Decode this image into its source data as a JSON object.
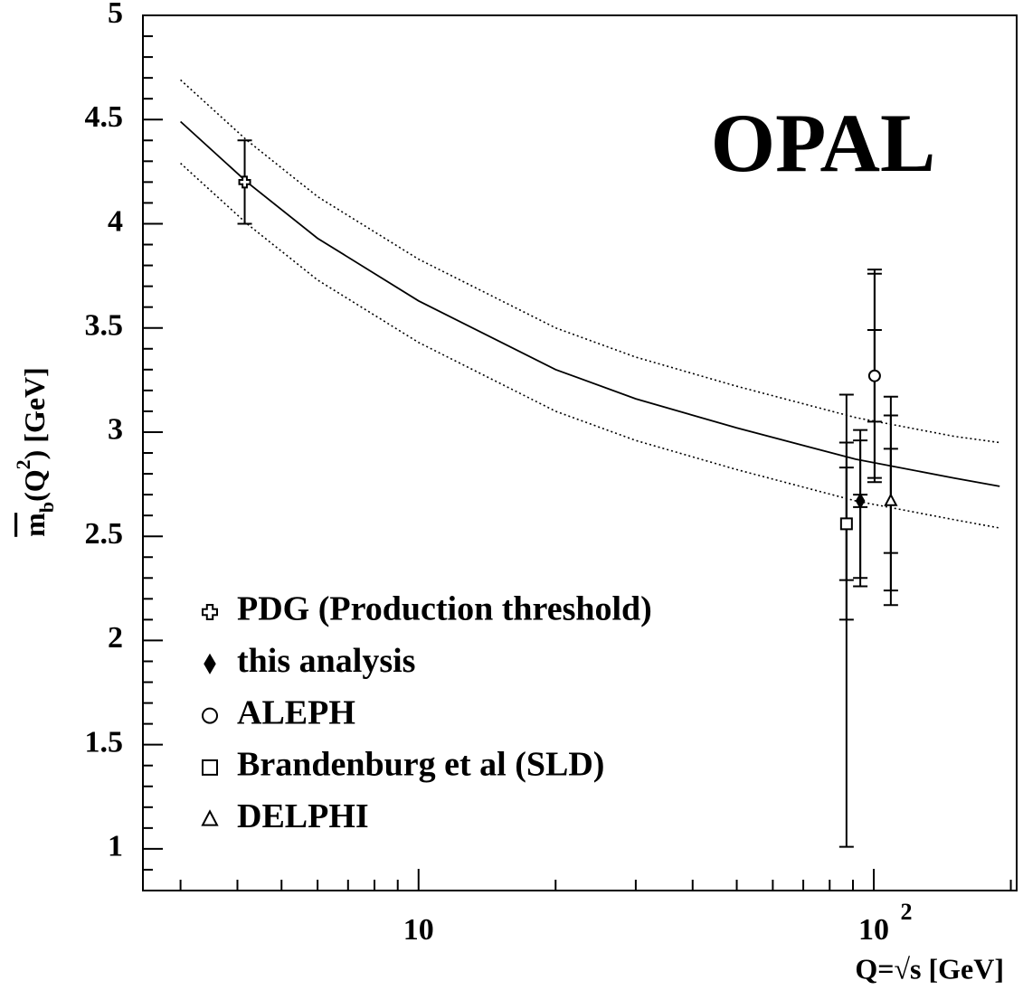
{
  "chart_data": {
    "type": "scatter",
    "title": "OPAL",
    "xlabel": "Q=√s [GeV]",
    "ylabel_parts": [
      "m",
      "b",
      "(Q",
      "2",
      ") [GeV]"
    ],
    "xscale": "log",
    "xlim": [
      2.48,
      206
    ],
    "ylim": [
      0.8,
      5
    ],
    "xticks": [
      10,
      {
        "value": 100,
        "label": "10"
      }
    ],
    "xtick_exponents": [
      null,
      "2"
    ],
    "xminorticks": [
      3,
      4,
      5,
      6,
      7,
      8,
      9,
      20,
      30,
      40,
      50,
      60,
      70,
      80,
      90,
      200
    ],
    "yticks": [
      1,
      1.5,
      2,
      2.5,
      3,
      3.5,
      4,
      4.5,
      5
    ],
    "yminorticks": [
      0.9,
      1.1,
      1.2,
      1.3,
      1.4,
      1.6,
      1.7,
      1.8,
      1.9,
      2.1,
      2.2,
      2.3,
      2.4,
      2.6,
      2.7,
      2.8,
      2.9,
      3.1,
      3.2,
      3.3,
      3.4,
      3.6,
      3.7,
      3.8,
      3.9,
      4.1,
      4.2,
      4.3,
      4.4,
      4.6,
      4.7,
      4.8,
      4.9
    ],
    "legend": "lower left",
    "series": [
      {
        "name": "PDG (Production threshold)",
        "marker": "cross",
        "color": "#000000",
        "x": [
          4.15
        ],
        "values": [
          4.2
        ],
        "errors": [
          [
            [
              0.2,
              0.2
            ]
          ]
        ]
      },
      {
        "name": "this analysis",
        "marker": "diamond",
        "color": "#000000",
        "x": [
          93.4
        ],
        "values": [
          2.67
        ],
        "errors": [
          [
            [
              0.03,
              0.03
            ],
            [
              0.37,
              0.29
            ],
            [
              0.41,
              0.34
            ]
          ]
        ]
      },
      {
        "name": "ALEPH",
        "marker": "circle",
        "color": "#000000",
        "x": [
          100.4
        ],
        "values": [
          3.27
        ],
        "errors": [
          [
            [
              0.22,
              0.22
            ],
            [
              0.49,
              0.49
            ],
            [
              0.51,
              0.51
            ]
          ]
        ]
      },
      {
        "name": "Brandenburg et al (SLD)",
        "marker": "square",
        "color": "#000000",
        "x": [
          87.1
        ],
        "values": [
          2.56
        ],
        "errors": [
          [
            [
              0.27,
              0.27
            ],
            [
              0.46,
              0.39
            ],
            [
              1.55,
              0.62
            ]
          ]
        ]
      },
      {
        "name": "DELPHI",
        "marker": "triangle",
        "color": "#000000",
        "x": [
          109
        ],
        "values": [
          2.67
        ],
        "errors": [
          [
            [
              0.25,
              0.25
            ],
            [
              0.43,
              0.41
            ],
            [
              0.5,
              0.5
            ]
          ]
        ]
      }
    ],
    "curves": [
      {
        "style": "solid",
        "color": "#000000",
        "x": [
          3,
          4.2,
          6,
          10,
          20,
          30,
          50,
          91.2,
          150,
          189
        ],
        "values": [
          4.49,
          4.2,
          3.93,
          3.63,
          3.3,
          3.16,
          3.02,
          2.87,
          2.78,
          2.74
        ]
      },
      {
        "style": "dotted",
        "color": "#000000",
        "x": [
          3,
          4.2,
          6,
          10,
          20,
          30,
          50,
          91.2,
          150,
          189
        ],
        "values": [
          4.69,
          4.4,
          4.13,
          3.83,
          3.5,
          3.36,
          3.22,
          3.07,
          2.98,
          2.95
        ]
      },
      {
        "style": "dotted",
        "color": "#000000",
        "x": [
          3,
          4.2,
          6,
          10,
          20,
          30,
          50,
          91.2,
          150,
          189
        ],
        "values": [
          4.29,
          4.0,
          3.73,
          3.43,
          3.1,
          2.96,
          2.82,
          2.67,
          2.58,
          2.54
        ]
      }
    ]
  }
}
